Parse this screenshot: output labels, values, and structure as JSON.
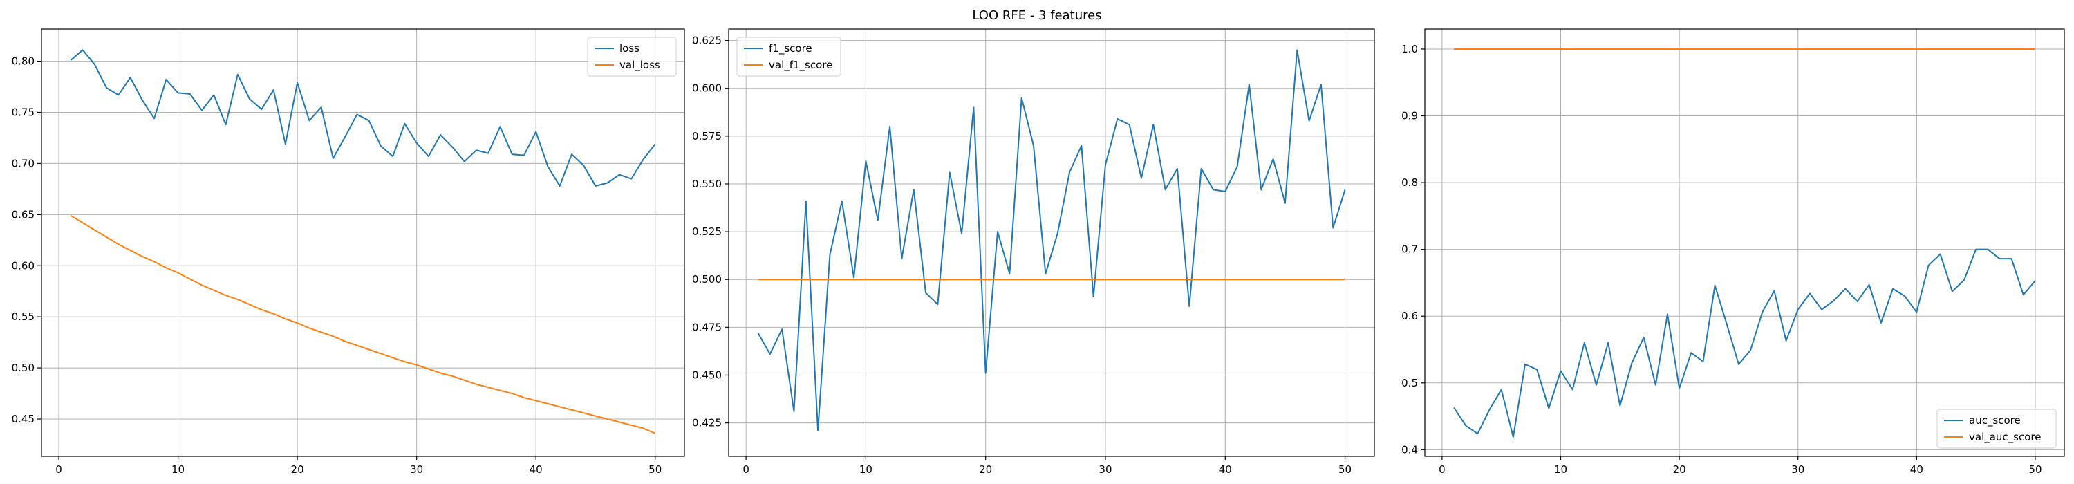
{
  "figure": {
    "suptitle": "LOO RFE - 3 features"
  },
  "colors": {
    "series1": "#1f77b4",
    "series2": "#ff7f0e",
    "grid": "#b0b0b0",
    "axis": "#000000"
  },
  "chart_data": [
    {
      "type": "line",
      "grid": true,
      "legend": "upper right",
      "xlim": [
        -1.45,
        52.45
      ],
      "ylim": [
        0.4135,
        0.8315
      ],
      "xticks": [
        0,
        10,
        20,
        30,
        40,
        50
      ],
      "yticks": [
        0.45,
        0.5,
        0.55,
        0.6,
        0.65,
        0.7,
        0.75,
        0.8
      ],
      "ytick_labels": [
        "0.45",
        "0.50",
        "0.55",
        "0.60",
        "0.65",
        "0.70",
        "0.75",
        "0.80"
      ],
      "x": [
        1,
        2,
        3,
        4,
        5,
        6,
        7,
        8,
        9,
        10,
        11,
        12,
        13,
        14,
        15,
        16,
        17,
        18,
        19,
        20,
        21,
        22,
        23,
        24,
        25,
        26,
        27,
        28,
        29,
        30,
        31,
        32,
        33,
        34,
        35,
        36,
        37,
        38,
        39,
        40,
        41,
        42,
        43,
        44,
        45,
        46,
        47,
        48,
        49,
        50
      ],
      "series": [
        {
          "name": "loss",
          "values": [
            0.801,
            0.811,
            0.797,
            0.774,
            0.767,
            0.784,
            0.762,
            0.744,
            0.782,
            0.769,
            0.768,
            0.752,
            0.767,
            0.738,
            0.787,
            0.763,
            0.753,
            0.772,
            0.719,
            0.779,
            0.742,
            0.755,
            0.705,
            0.726,
            0.748,
            0.742,
            0.717,
            0.707,
            0.739,
            0.72,
            0.707,
            0.728,
            0.716,
            0.702,
            0.713,
            0.71,
            0.736,
            0.709,
            0.708,
            0.731,
            0.697,
            0.678,
            0.709,
            0.698,
            0.678,
            0.681,
            0.689,
            0.685,
            0.704,
            0.719
          ]
        },
        {
          "name": "val_loss",
          "values": [
            0.649,
            0.642,
            0.635,
            0.628,
            0.621,
            0.615,
            0.609,
            0.604,
            0.598,
            0.593,
            0.587,
            0.581,
            0.576,
            0.571,
            0.567,
            0.562,
            0.557,
            0.553,
            0.548,
            0.544,
            0.539,
            0.535,
            0.531,
            0.526,
            0.522,
            0.518,
            0.514,
            0.51,
            0.506,
            0.503,
            0.499,
            0.495,
            0.492,
            0.488,
            0.484,
            0.481,
            0.478,
            0.475,
            0.471,
            0.468,
            0.465,
            0.462,
            0.459,
            0.456,
            0.453,
            0.45,
            0.447,
            0.444,
            0.441,
            0.436
          ]
        }
      ]
    },
    {
      "type": "line",
      "grid": true,
      "legend": "upper left",
      "xlim": [
        -1.45,
        52.45
      ],
      "ylim": [
        0.4075,
        0.631
      ],
      "xticks": [
        0,
        10,
        20,
        30,
        40,
        50
      ],
      "yticks": [
        0.425,
        0.45,
        0.475,
        0.5,
        0.525,
        0.55,
        0.575,
        0.6,
        0.625
      ],
      "ytick_labels": [
        "0.425",
        "0.450",
        "0.475",
        "0.500",
        "0.525",
        "0.550",
        "0.575",
        "0.600",
        "0.625"
      ],
      "x": [
        1,
        2,
        3,
        4,
        5,
        6,
        7,
        8,
        9,
        10,
        11,
        12,
        13,
        14,
        15,
        16,
        17,
        18,
        19,
        20,
        21,
        22,
        23,
        24,
        25,
        26,
        27,
        28,
        29,
        30,
        31,
        32,
        33,
        34,
        35,
        36,
        37,
        38,
        39,
        40,
        41,
        42,
        43,
        44,
        45,
        46,
        47,
        48,
        49,
        50
      ],
      "series": [
        {
          "name": "f1_score",
          "values": [
            0.472,
            0.461,
            0.474,
            0.431,
            0.541,
            0.421,
            0.513,
            0.541,
            0.501,
            0.562,
            0.531,
            0.58,
            0.511,
            0.547,
            0.493,
            0.487,
            0.556,
            0.524,
            0.59,
            0.451,
            0.525,
            0.503,
            0.595,
            0.57,
            0.503,
            0.524,
            0.556,
            0.57,
            0.491,
            0.56,
            0.584,
            0.581,
            0.553,
            0.581,
            0.547,
            0.558,
            0.486,
            0.558,
            0.547,
            0.546,
            0.559,
            0.602,
            0.547,
            0.563,
            0.54,
            0.62,
            0.583,
            0.602,
            0.527,
            0.547
          ]
        },
        {
          "name": "val_f1_score",
          "values": [
            0.5,
            0.5,
            0.5,
            0.5,
            0.5,
            0.5,
            0.5,
            0.5,
            0.5,
            0.5,
            0.5,
            0.5,
            0.5,
            0.5,
            0.5,
            0.5,
            0.5,
            0.5,
            0.5,
            0.5,
            0.5,
            0.5,
            0.5,
            0.5,
            0.5,
            0.5,
            0.5,
            0.5,
            0.5,
            0.5,
            0.5,
            0.5,
            0.5,
            0.5,
            0.5,
            0.5,
            0.5,
            0.5,
            0.5,
            0.5,
            0.5,
            0.5,
            0.5,
            0.5,
            0.5,
            0.5,
            0.5,
            0.5,
            0.5,
            0.5
          ]
        }
      ]
    },
    {
      "type": "line",
      "grid": true,
      "legend": "lower right",
      "xlim": [
        -1.45,
        52.45
      ],
      "ylim": [
        0.39,
        1.03
      ],
      "xticks": [
        0,
        10,
        20,
        30,
        40,
        50
      ],
      "yticks": [
        0.4,
        0.5,
        0.6,
        0.7,
        0.8,
        0.9,
        1.0
      ],
      "ytick_labels": [
        "0.4",
        "0.5",
        "0.6",
        "0.7",
        "0.8",
        "0.9",
        "1.0"
      ],
      "x": [
        1,
        2,
        3,
        4,
        5,
        6,
        7,
        8,
        9,
        10,
        11,
        12,
        13,
        14,
        15,
        16,
        17,
        18,
        19,
        20,
        21,
        22,
        23,
        24,
        25,
        26,
        27,
        28,
        29,
        30,
        31,
        32,
        33,
        34,
        35,
        36,
        37,
        38,
        39,
        40,
        41,
        42,
        43,
        44,
        45,
        46,
        47,
        48,
        49,
        50
      ],
      "series": [
        {
          "name": "auc_score",
          "values": [
            0.463,
            0.436,
            0.424,
            0.46,
            0.49,
            0.419,
            0.528,
            0.52,
            0.462,
            0.518,
            0.49,
            0.56,
            0.497,
            0.56,
            0.466,
            0.53,
            0.568,
            0.497,
            0.603,
            0.492,
            0.545,
            0.532,
            0.646,
            0.588,
            0.528,
            0.549,
            0.606,
            0.638,
            0.563,
            0.61,
            0.634,
            0.61,
            0.623,
            0.641,
            0.622,
            0.647,
            0.59,
            0.641,
            0.63,
            0.606,
            0.676,
            0.693,
            0.637,
            0.654,
            0.7,
            0.7,
            0.686,
            0.686,
            0.632,
            0.653
          ]
        },
        {
          "name": "val_auc_score",
          "values": [
            1.0,
            1.0,
            1.0,
            1.0,
            1.0,
            1.0,
            1.0,
            1.0,
            1.0,
            1.0,
            1.0,
            1.0,
            1.0,
            1.0,
            1.0,
            1.0,
            1.0,
            1.0,
            1.0,
            1.0,
            1.0,
            1.0,
            1.0,
            1.0,
            1.0,
            1.0,
            1.0,
            1.0,
            1.0,
            1.0,
            1.0,
            1.0,
            1.0,
            1.0,
            1.0,
            1.0,
            1.0,
            1.0,
            1.0,
            1.0,
            1.0,
            1.0,
            1.0,
            1.0,
            1.0,
            1.0,
            1.0,
            1.0,
            1.0,
            1.0
          ]
        }
      ]
    }
  ]
}
